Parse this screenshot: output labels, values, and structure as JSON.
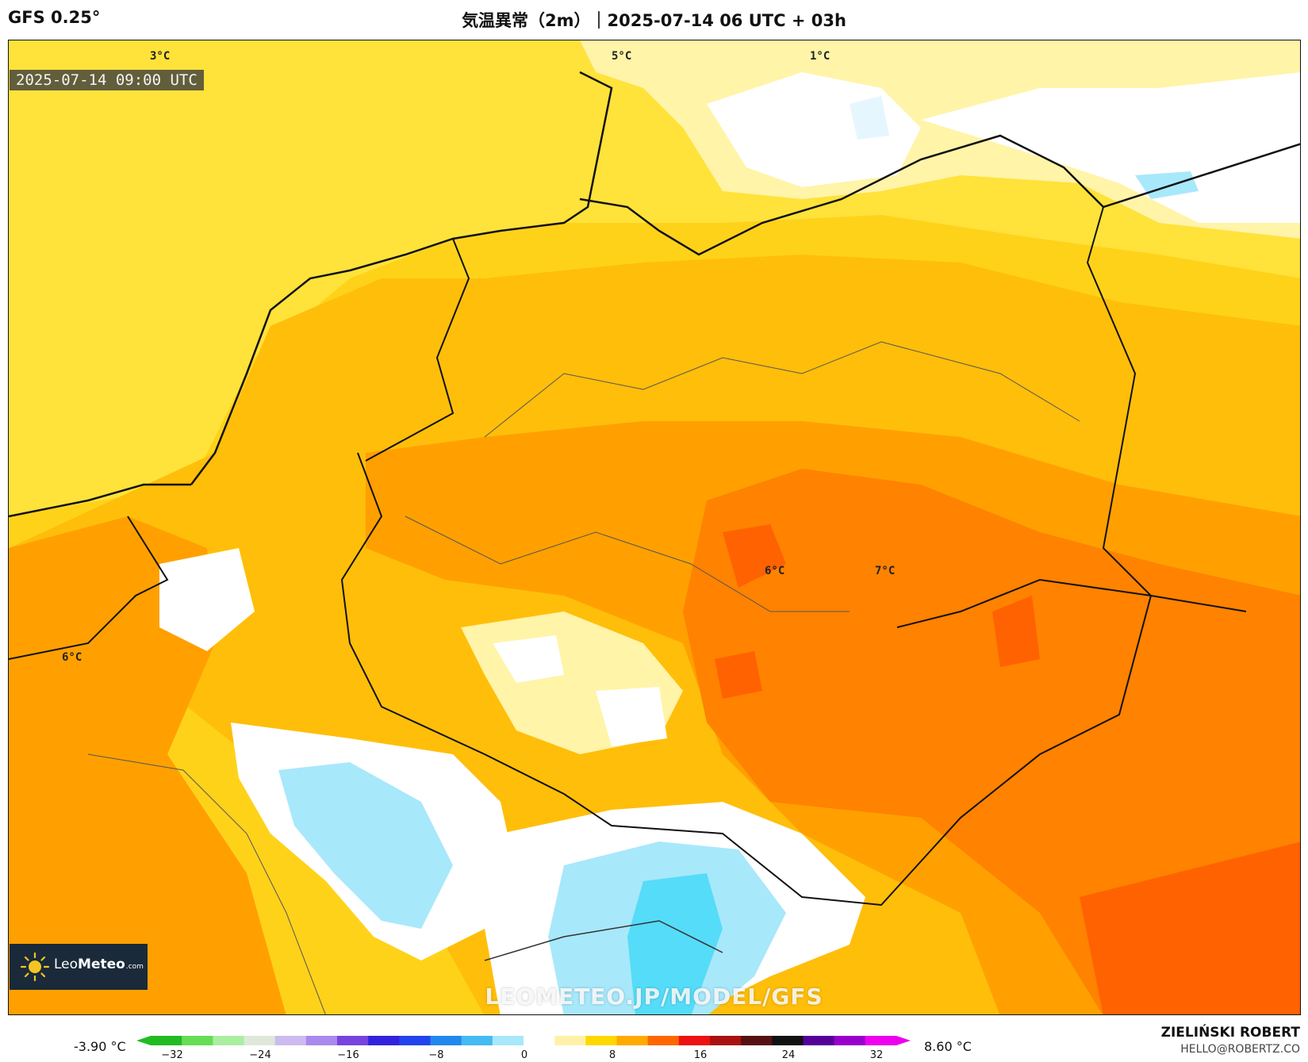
{
  "header": {
    "model": "GFS 0.25°",
    "title": "気温異常（2m）｜2025-07-14 06 UTC + 03h"
  },
  "map": {
    "valid_time": "2025-07-14 09:00 UTC",
    "watermark": "LEOMETEO.JP/MODEL/GFS",
    "logo": {
      "brand_light": "Leo",
      "brand_bold": "Meteo",
      "suffix": ".com"
    },
    "isotherm_labels": [
      "3°C",
      "5°C",
      "1°C",
      "6°C",
      "7°C",
      "6°C"
    ]
  },
  "colorbar": {
    "min_label": "-3.90 °C",
    "max_label": "8.60 °C",
    "ticks": [
      "−32",
      "−24",
      "−16",
      "−8",
      "0",
      "8",
      "16",
      "24",
      "32"
    ],
    "colors": [
      "#22bb22",
      "#66dd55",
      "#aaeea0",
      "#dfe8d8",
      "#ccbbee",
      "#aa88ee",
      "#7744dd",
      "#3322dd",
      "#2244ee",
      "#2288ee",
      "#44bbf2",
      "#a8e8fb",
      "#ffffff",
      "#fff2a8",
      "#ffd800",
      "#ffaa00",
      "#ff6600",
      "#ee1111",
      "#aa1111",
      "#551111",
      "#111111",
      "#550099",
      "#9900cc",
      "#ee00ee"
    ]
  },
  "footer": {
    "author": "ZIELIŃSKI ROBERT",
    "email": "HELLO@ROBERTZ.CO"
  },
  "legend_colors": {
    "anomaly_1": "#ffe640",
    "anomaly_2": "#ffd21a",
    "anomaly_3": "#ffbe0a",
    "anomaly_4": "#ffa000",
    "anomaly_5": "#ff8200",
    "anomaly_6": "#ff6200",
    "near_zero": "#ffffff",
    "negative_1": "#e6f6ff",
    "negative_2": "#a8e8fb",
    "negative_3": "#55dcf8"
  }
}
